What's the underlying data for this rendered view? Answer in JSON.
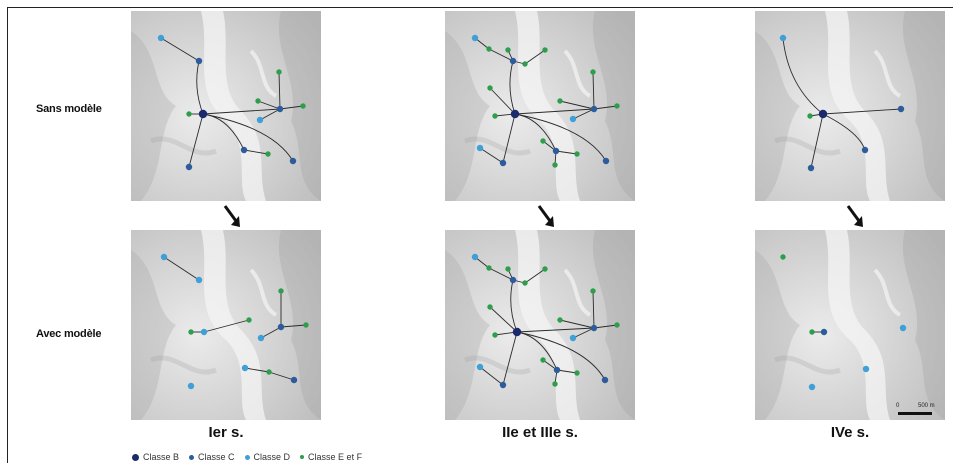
{
  "row_labels": {
    "top": "Sans modèle",
    "bottom": "Avec modèle"
  },
  "periods": [
    "Ier s.",
    "IIe et IIIe s.",
    "IVe s."
  ],
  "legend": [
    {
      "label": "Classe B",
      "color": "#1a2a6c",
      "size": "large"
    },
    {
      "label": "Classe C",
      "color": "#2c5c9c",
      "size": "medium"
    },
    {
      "label": "Classe D",
      "color": "#3ea0d6",
      "size": "medium"
    },
    {
      "label": "Classe E et F",
      "color": "#2e9e4c",
      "size": "small"
    }
  ],
  "scale": {
    "zero": "0",
    "distance": "500 m"
  }
}
